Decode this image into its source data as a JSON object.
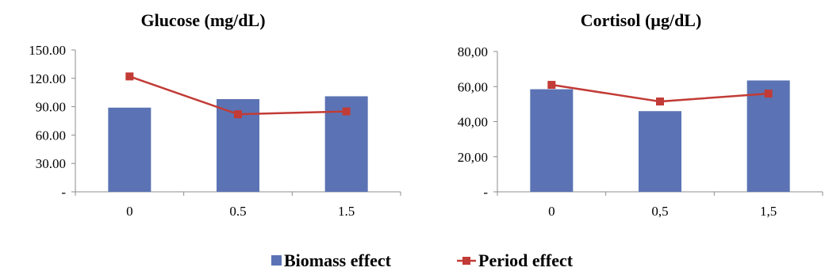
{
  "chart_data": [
    {
      "type": "bar+line",
      "title": "Glucose (mg/dL)",
      "categories": [
        "0",
        "0.5",
        "1.5"
      ],
      "ylim": [
        0,
        150
      ],
      "yticks": [
        "-",
        "30.00",
        "60.00",
        "90.00",
        "120.00",
        "150.00"
      ],
      "series": [
        {
          "name": "Biomass effect",
          "type": "bar",
          "values": [
            89,
            98,
            101
          ]
        },
        {
          "name": "Period effect",
          "type": "line",
          "values": [
            122,
            82,
            85
          ]
        }
      ],
      "grid": false
    },
    {
      "type": "bar+line",
      "title": "Cortisol (µg/dL)",
      "categories": [
        "0",
        "0,5",
        "1,5"
      ],
      "ylim": [
        0,
        80
      ],
      "yticks": [
        "-",
        "20,00",
        "40,00",
        "60,00",
        "80,00"
      ],
      "series": [
        {
          "name": "Biomass effect",
          "type": "bar",
          "values": [
            58.5,
            46,
            63.5
          ]
        },
        {
          "name": "Period effect",
          "type": "line",
          "values": [
            61,
            51.5,
            56
          ]
        }
      ],
      "grid": false
    }
  ],
  "legend": {
    "placement": "bottom-center",
    "items": [
      {
        "label": "Biomass effect",
        "symbol": "bar",
        "color": "#5b73b4"
      },
      {
        "label": "Period effect",
        "symbol": "line-marker",
        "color": "#c23b36"
      }
    ]
  },
  "colors": {
    "bar": "#5b73b4",
    "line": "#c23b36",
    "marker": "#c23b36"
  }
}
